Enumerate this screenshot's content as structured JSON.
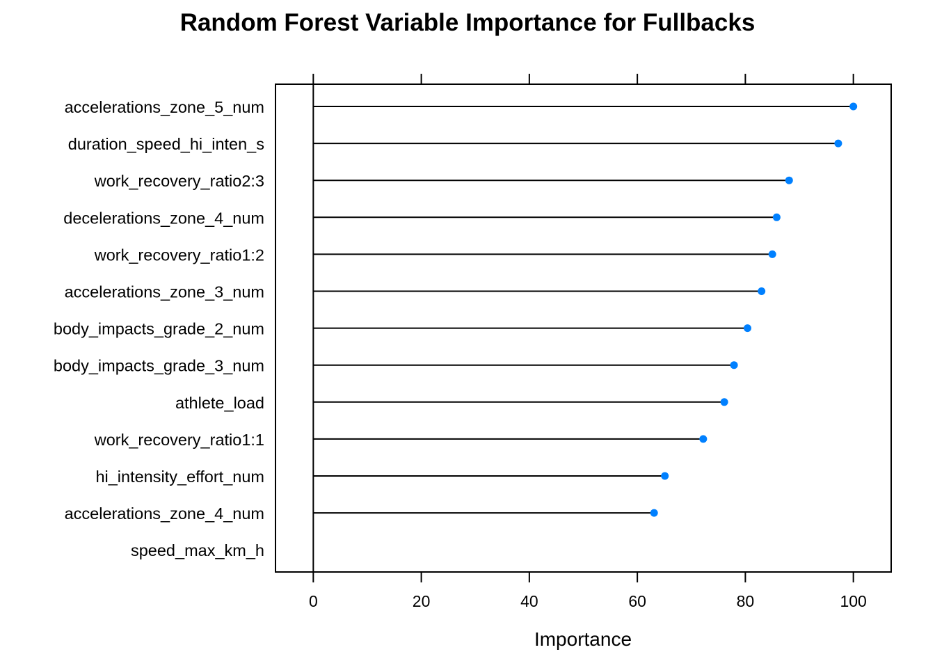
{
  "chart_data": {
    "type": "dotplot",
    "title": "Random Forest Variable Importance for Fullbacks",
    "xlabel": "Importance",
    "ylabel": "",
    "xlim": [
      -7,
      107
    ],
    "xticks": [
      0,
      20,
      40,
      60,
      80,
      100
    ],
    "grid": false,
    "legend": "none",
    "categories": [
      "accelerations_zone_5_num",
      "duration_speed_hi_inten_s",
      "work_recovery_ratio2:3",
      "decelerations_zone_4_num",
      "work_recovery_ratio1:2",
      "accelerations_zone_3_num",
      "body_impacts_grade_2_num",
      "body_impacts_grade_3_num",
      "athlete_load",
      "work_recovery_ratio1:1",
      "hi_intensity_effort_num",
      "accelerations_zone_4_num",
      "speed_max_km_h"
    ],
    "values": [
      100,
      97.2,
      88.1,
      85.8,
      85.0,
      83.0,
      80.4,
      77.9,
      76.1,
      72.2,
      65.1,
      63.1,
      0
    ],
    "colors": {
      "point": "#0080ff",
      "line": "#000000"
    }
  }
}
